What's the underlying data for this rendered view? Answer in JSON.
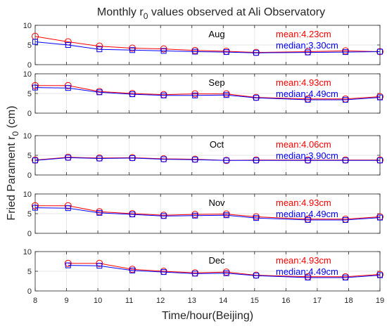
{
  "title": "Monthly r₀ values observed at Ali Observatory",
  "title_parts": {
    "prefix": "Monthly r",
    "sub": "0",
    "suffix": " values observed at Ali Observatory"
  },
  "xlabel": "Time/hour(Beijing)",
  "ylabel_parts": {
    "prefix": "Fried Parament r",
    "sub": "0",
    "suffix": " (cm)"
  },
  "colors": {
    "mean": "#ff0000",
    "median": "#0000ff"
  },
  "chart_data": {
    "type": "line",
    "xlim": [
      8,
      19
    ],
    "ylim": [
      0,
      10
    ],
    "x_ticks": [
      "8",
      "9",
      "10",
      "11",
      "12",
      "13",
      "14",
      "15",
      "16",
      "17",
      "18",
      "19"
    ],
    "y_ticks": [
      "0",
      "5",
      "10"
    ],
    "grid": true,
    "panels": [
      {
        "month": "Aug",
        "mean_label": "mean:4.23cm",
        "median_label": "median:3.30cm",
        "series": [
          {
            "marker": "circle",
            "color": "#ff0000",
            "x": [
              8,
              9.05,
              10.05,
              11.1,
              12.1,
              13.1,
              14.1,
              15.05,
              16.7,
              17.9,
              19
            ],
            "y": [
              7.2,
              5.8,
              4.7,
              4.2,
              4.0,
              3.6,
              3.4,
              3.1,
              3.3,
              3.5,
              3.3
            ]
          },
          {
            "marker": "square",
            "color": "#0000ff",
            "x": [
              8,
              9.05,
              10.05,
              11.1,
              12.1,
              13.1,
              14.1,
              15.05,
              16.7,
              17.9,
              19
            ],
            "y": [
              5.8,
              5.0,
              3.9,
              3.7,
              3.5,
              3.3,
              3.2,
              3.0,
              3.1,
              3.2,
              3.3
            ]
          }
        ]
      },
      {
        "month": "Sep",
        "mean_label": "mean:4.93cm",
        "median_label": "median:4.49cm",
        "series": [
          {
            "marker": "circle",
            "color": "#ff0000",
            "x": [
              8,
              9.05,
              10.05,
              11.1,
              12.1,
              13.1,
              14.1,
              15.05,
              16.7,
              17.9,
              19
            ],
            "y": [
              7.0,
              7.0,
              5.5,
              5.0,
              4.7,
              4.9,
              4.9,
              4.0,
              3.6,
              3.6,
              4.2
            ]
          },
          {
            "marker": "square",
            "color": "#0000ff",
            "x": [
              8,
              9.05,
              10.05,
              11.1,
              12.1,
              13.1,
              14.1,
              15.05,
              16.7,
              17.9,
              19
            ],
            "y": [
              6.5,
              6.4,
              5.3,
              4.8,
              4.5,
              4.5,
              4.6,
              3.9,
              3.4,
              3.4,
              4.0
            ]
          }
        ]
      },
      {
        "month": "Oct",
        "mean_label": "mean:4.06cm",
        "median_label": "median:3.90cm",
        "series": [
          {
            "marker": "circle",
            "color": "#ff0000",
            "x": [
              8,
              9.05,
              10.05,
              11.1,
              12.1,
              13.1,
              14.1,
              15.05,
              16.7,
              17.9,
              19
            ],
            "y": [
              3.8,
              4.5,
              4.3,
              4.4,
              4.1,
              4.0,
              3.7,
              3.8,
              3.8,
              3.8,
              3.8
            ]
          },
          {
            "marker": "square",
            "color": "#0000ff",
            "x": [
              8,
              9.05,
              10.05,
              11.1,
              12.1,
              13.1,
              14.1,
              15.05,
              16.7,
              17.9,
              19
            ],
            "y": [
              3.7,
              4.4,
              4.2,
              4.3,
              4.0,
              3.9,
              3.7,
              3.7,
              3.7,
              3.7,
              3.7
            ]
          }
        ]
      },
      {
        "month": "Nov",
        "mean_label": "mean:4.93cm",
        "median_label": "median:4.49cm",
        "series": [
          {
            "marker": "circle",
            "color": "#ff0000",
            "x": [
              8,
              9.05,
              10.05,
              11.1,
              12.1,
              13.1,
              14.1,
              15.05,
              16.7,
              17.9,
              19
            ],
            "y": [
              7.0,
              7.0,
              5.5,
              5.0,
              4.6,
              4.8,
              4.9,
              4.2,
              3.6,
              3.6,
              4.2
            ]
          },
          {
            "marker": "square",
            "color": "#0000ff",
            "x": [
              8,
              9.05,
              10.05,
              11.1,
              12.1,
              13.1,
              14.1,
              15.05,
              16.7,
              17.9,
              19
            ],
            "y": [
              6.5,
              6.4,
              5.2,
              4.8,
              4.4,
              4.5,
              4.6,
              3.9,
              3.4,
              3.4,
              4.0
            ]
          }
        ]
      },
      {
        "month": "Dec",
        "mean_label": "mean:4.93cm",
        "median_label": "median:4.49cm",
        "series": [
          {
            "marker": "circle",
            "color": "#ff0000",
            "x": [
              9.05,
              10.05,
              11.1,
              12.1,
              13.1,
              14.1,
              15.05,
              16.7,
              17.9,
              19
            ],
            "y": [
              7.0,
              7.0,
              5.5,
              5.0,
              4.6,
              4.8,
              4.0,
              3.6,
              3.6,
              4.2
            ]
          },
          {
            "marker": "square",
            "color": "#0000ff",
            "x": [
              9.05,
              10.05,
              11.1,
              12.1,
              13.1,
              14.1,
              15.05,
              16.7,
              17.9,
              19
            ],
            "y": [
              6.5,
              6.4,
              5.2,
              4.8,
              4.4,
              4.5,
              3.9,
              3.4,
              3.4,
              4.0
            ]
          }
        ]
      }
    ]
  }
}
